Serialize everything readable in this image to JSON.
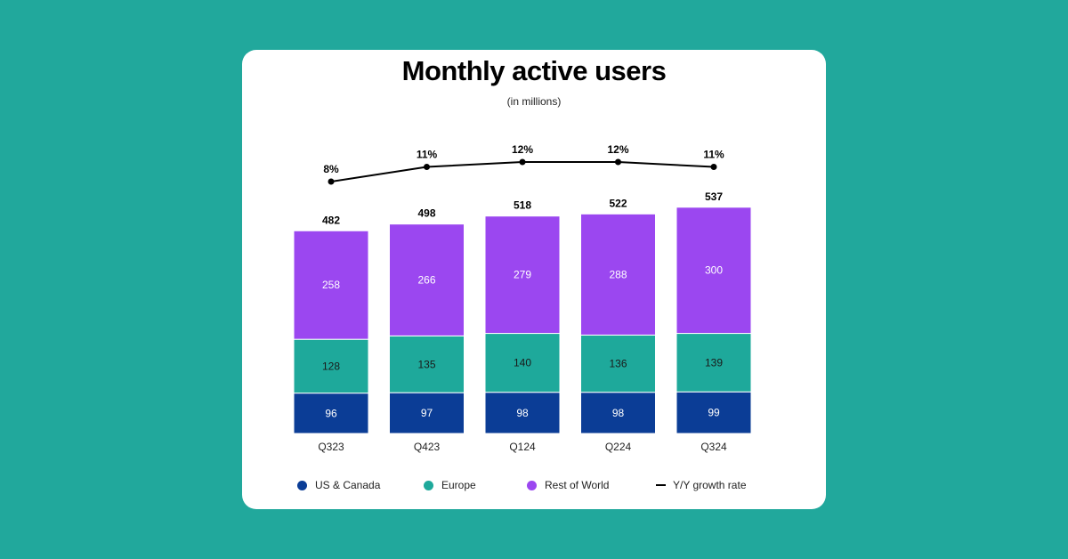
{
  "colors": {
    "background": "#21a89c",
    "us_canada": "#0b3d96",
    "europe": "#1ea99b",
    "rest_of_world": "#9b47f0",
    "growth_line": "#000000"
  },
  "chart_data": {
    "type": "bar",
    "stacked": true,
    "title": "Monthly active users",
    "subtitle": "(in millions)",
    "categories": [
      "Q323",
      "Q423",
      "Q124",
      "Q224",
      "Q324"
    ],
    "series": [
      {
        "name": "US & Canada",
        "key": "us_canada",
        "values": [
          96,
          97,
          98,
          98,
          99
        ]
      },
      {
        "name": "Europe",
        "key": "europe",
        "values": [
          128,
          135,
          140,
          136,
          139
        ]
      },
      {
        "name": "Rest of World",
        "key": "rest_of_world",
        "values": [
          258,
          266,
          279,
          288,
          300
        ]
      }
    ],
    "totals": [
      482,
      498,
      518,
      522,
      537
    ],
    "growth": {
      "name": "Y/Y growth rate",
      "type": "line",
      "values": [
        8,
        11,
        12,
        12,
        11
      ],
      "labels": [
        "8%",
        "11%",
        "12%",
        "12%",
        "11%"
      ]
    },
    "legend_position": "bottom",
    "grid": false
  },
  "legend": {
    "us_canada": "US & Canada",
    "europe": "Europe",
    "rest_of_world": "Rest of World",
    "growth": "Y/Y growth rate"
  }
}
